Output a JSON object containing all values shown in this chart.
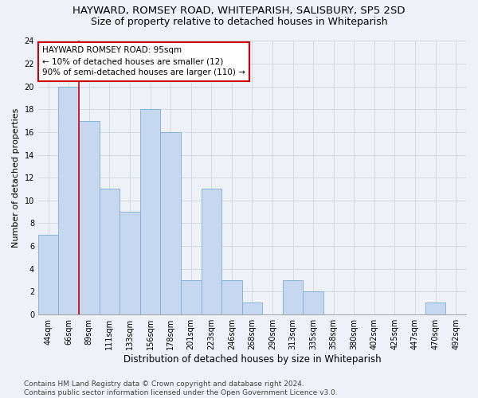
{
  "title": "HAYWARD, ROMSEY ROAD, WHITEPARISH, SALISBURY, SP5 2SD",
  "subtitle": "Size of property relative to detached houses in Whiteparish",
  "xlabel": "Distribution of detached houses by size in Whiteparish",
  "ylabel": "Number of detached properties",
  "categories": [
    "44sqm",
    "66sqm",
    "89sqm",
    "111sqm",
    "133sqm",
    "156sqm",
    "178sqm",
    "201sqm",
    "223sqm",
    "246sqm",
    "268sqm",
    "290sqm",
    "313sqm",
    "335sqm",
    "358sqm",
    "380sqm",
    "402sqm",
    "425sqm",
    "447sqm",
    "470sqm",
    "492sqm"
  ],
  "values": [
    7,
    20,
    17,
    11,
    9,
    18,
    16,
    3,
    11,
    3,
    1,
    0,
    3,
    2,
    0,
    0,
    0,
    0,
    0,
    1,
    0
  ],
  "bar_color": "#c5d8f0",
  "bar_edge_color": "#7bafd4",
  "grid_color": "#cdd5e0",
  "background_color": "#eef2f8",
  "vline_color": "#cc0000",
  "annotation_text": "HAYWARD ROMSEY ROAD: 95sqm\n← 10% of detached houses are smaller (12)\n90% of semi-detached houses are larger (110) →",
  "annotation_box_color": "white",
  "annotation_box_edge": "#cc0000",
  "ylim": [
    0,
    24
  ],
  "yticks": [
    0,
    2,
    4,
    6,
    8,
    10,
    12,
    14,
    16,
    18,
    20,
    22,
    24
  ],
  "footer": "Contains HM Land Registry data © Crown copyright and database right 2024.\nContains public sector information licensed under the Open Government Licence v3.0.",
  "title_fontsize": 9.5,
  "subtitle_fontsize": 9,
  "xlabel_fontsize": 8.5,
  "ylabel_fontsize": 8,
  "tick_fontsize": 7,
  "annotation_fontsize": 7.5,
  "footer_fontsize": 6.5
}
